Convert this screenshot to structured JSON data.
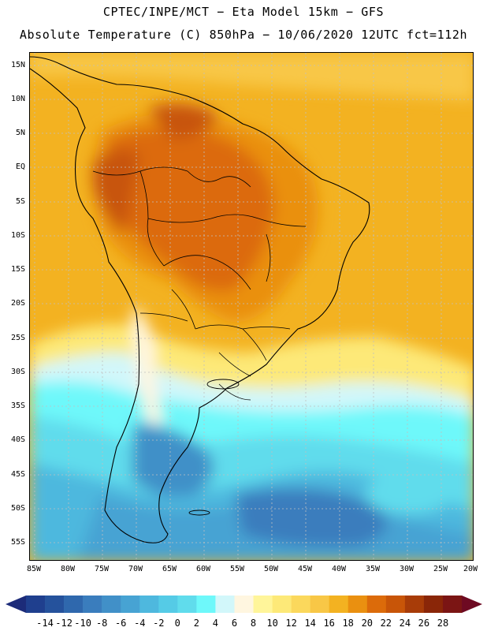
{
  "titles": {
    "line1": "CPTEC/INPE/MCT − Eta Model 15km − GFS",
    "line2": "Absolute Temperature (C) 850hPa − 10/06/2020 12UTC fct=112h"
  },
  "map": {
    "region": "South America",
    "lat_ticks": [
      "15N",
      "10N",
      "5N",
      "EQ",
      "5S",
      "10S",
      "15S",
      "20S",
      "25S",
      "30S",
      "35S",
      "40S",
      "45S",
      "50S",
      "55S"
    ],
    "lon_ticks": [
      "85W",
      "80W",
      "75W",
      "70W",
      "65W",
      "60W",
      "55W",
      "50W",
      "45W",
      "40W",
      "35W",
      "30W",
      "25W",
      "20W"
    ]
  },
  "colorbar": {
    "labels": [
      "-14",
      "-12",
      "-10",
      "-8",
      "-6",
      "-4",
      "-2",
      "0",
      "2",
      "4",
      "6",
      "8",
      "10",
      "12",
      "14",
      "16",
      "18",
      "20",
      "22",
      "24",
      "26",
      "28"
    ],
    "colors": [
      "#1f3f8e",
      "#25529c",
      "#2f68ad",
      "#3a7dbd",
      "#4190c8",
      "#47a3d3",
      "#4eb8de",
      "#55cbe6",
      "#60dcec",
      "#6ef8fa",
      "#d2f7fa",
      "#fff6e0",
      "#fff59a",
      "#fde978",
      "#fbd85c",
      "#f8c746",
      "#f3b221",
      "#ea9010",
      "#dc6b0a",
      "#c85508",
      "#a83c08",
      "#8a2608",
      "#7b1514"
    ],
    "low_arrow_color": "#1c2b79",
    "high_arrow_color": "#6e0a22"
  }
}
